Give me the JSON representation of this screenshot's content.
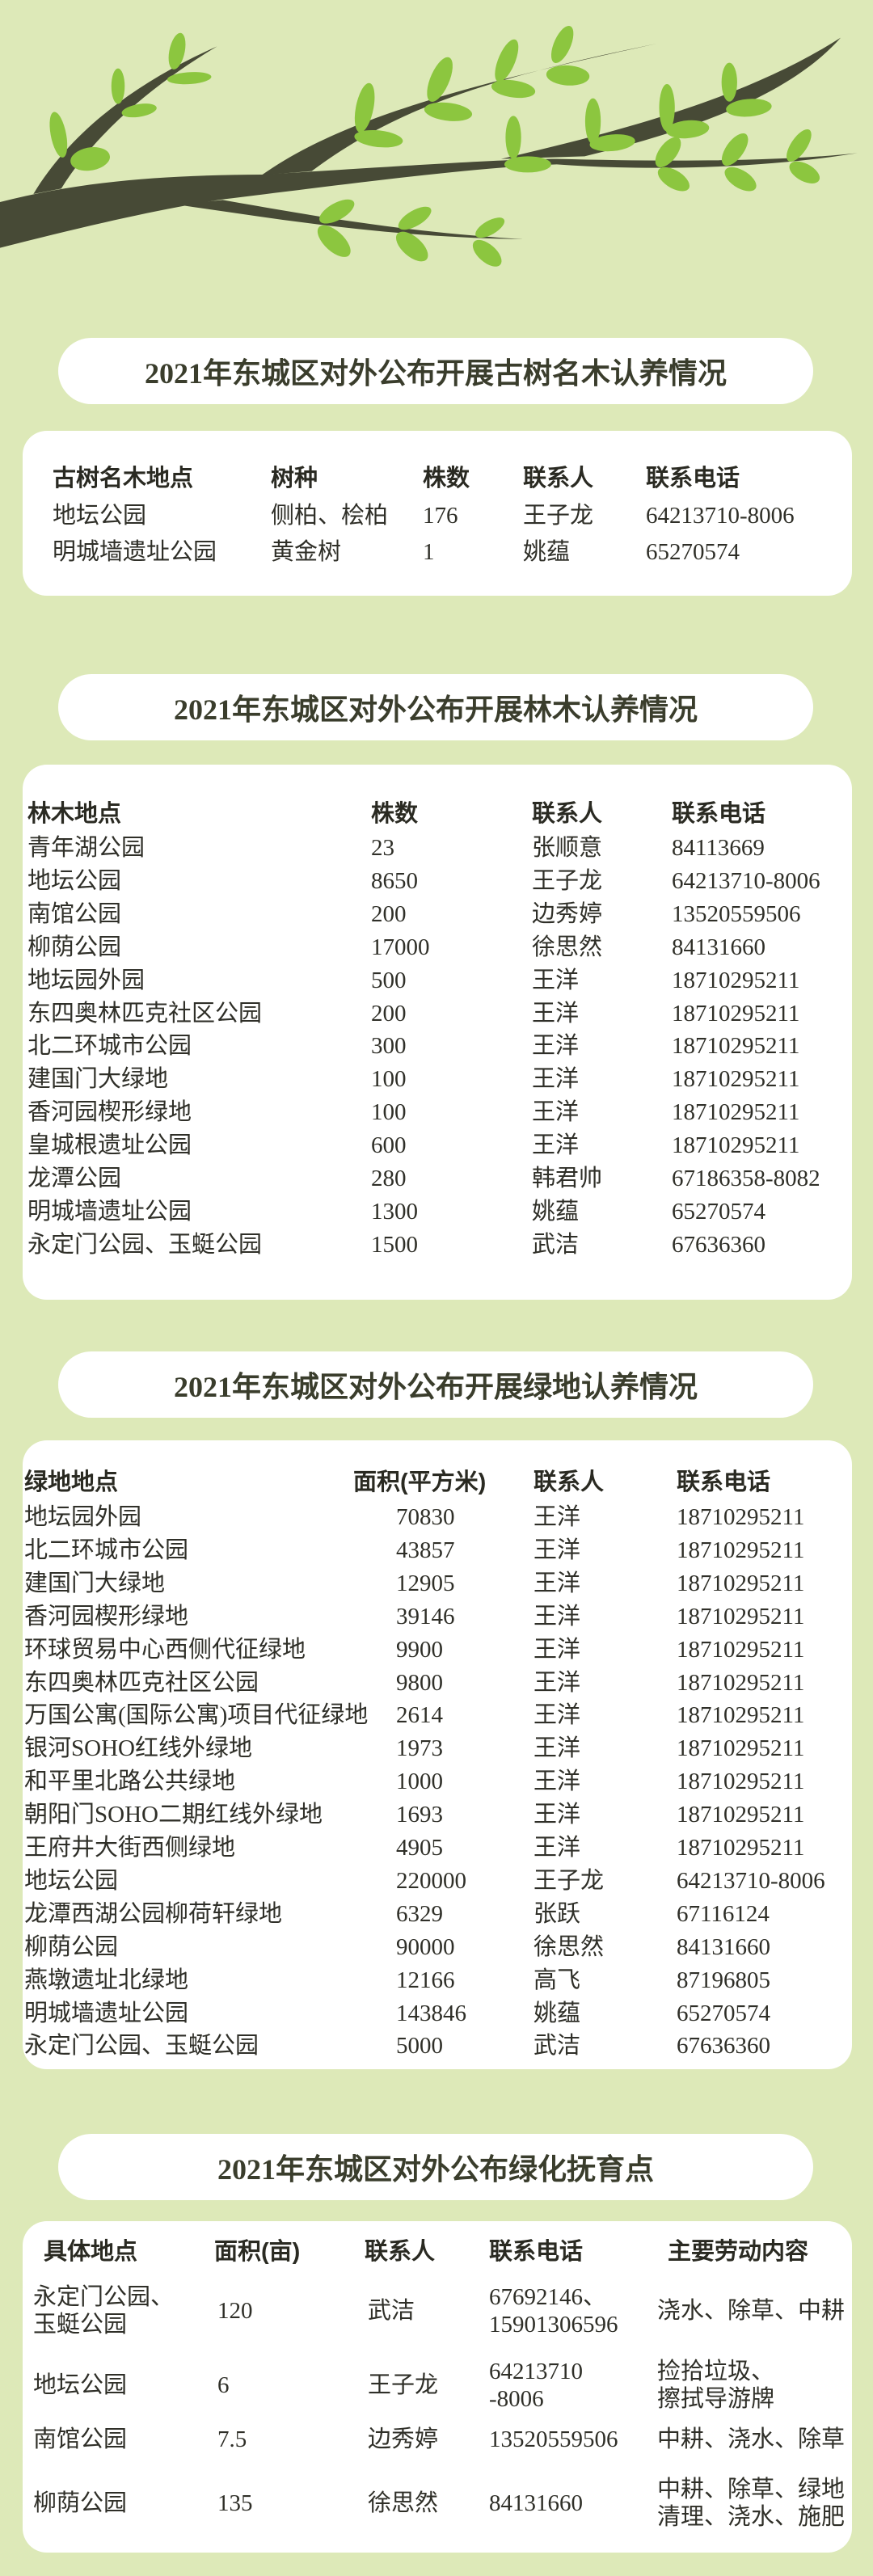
{
  "colors": {
    "background": "#dde9b8",
    "branch": "#474a36",
    "leaf": "#8cc63f",
    "panel": "#ffffff"
  },
  "sections": [
    {
      "title": "2021年东城区对外公布开展古树名木认养情况",
      "headers": [
        "古树名木地点",
        "树种",
        "株数",
        "联系人",
        "联系电话"
      ],
      "rows": [
        [
          "地坛公园",
          "侧柏、桧柏",
          "176",
          "王子龙",
          "64213710-8006"
        ],
        [
          "明城墙遗址公园",
          "黄金树",
          "1",
          "姚蕴",
          "65270574"
        ]
      ]
    },
    {
      "title": "2021年东城区对外公布开展林木认养情况",
      "headers": [
        "林木地点",
        "株数",
        "联系人",
        "联系电话"
      ],
      "rows": [
        [
          "青年湖公园",
          "23",
          "张顺意",
          "84113669"
        ],
        [
          "地坛公园",
          "8650",
          "王子龙",
          "64213710-8006"
        ],
        [
          "南馆公园",
          "200",
          "边秀婷",
          "13520559506"
        ],
        [
          "柳荫公园",
          "17000",
          "徐思然",
          "84131660"
        ],
        [
          "地坛园外园",
          "500",
          "王洋",
          "18710295211"
        ],
        [
          "东四奥林匹克社区公园",
          "200",
          "王洋",
          "18710295211"
        ],
        [
          "北二环城市公园",
          "300",
          "王洋",
          "18710295211"
        ],
        [
          "建国门大绿地",
          "100",
          "王洋",
          "18710295211"
        ],
        [
          "香河园楔形绿地",
          "100",
          "王洋",
          "18710295211"
        ],
        [
          "皇城根遗址公园",
          "600",
          "王洋",
          "18710295211"
        ],
        [
          "龙潭公园",
          "280",
          "韩君帅",
          "67186358-8082"
        ],
        [
          "明城墙遗址公园",
          "1300",
          "姚蕴",
          "65270574"
        ],
        [
          "永定门公园、玉蜓公园",
          "1500",
          "武洁",
          "67636360"
        ]
      ]
    },
    {
      "title": "2021年东城区对外公布开展绿地认养情况",
      "headers": [
        "绿地地点",
        "面积(平方米)",
        "联系人",
        "联系电话"
      ],
      "rows": [
        [
          "地坛园外园",
          "70830",
          "王洋",
          "18710295211"
        ],
        [
          "北二环城市公园",
          "43857",
          "王洋",
          "18710295211"
        ],
        [
          "建国门大绿地",
          "12905",
          "王洋",
          "18710295211"
        ],
        [
          "香河园楔形绿地",
          "39146",
          "王洋",
          "18710295211"
        ],
        [
          "环球贸易中心西侧代征绿地",
          "9900",
          "王洋",
          "18710295211"
        ],
        [
          "东四奥林匹克社区公园",
          "9800",
          "王洋",
          "18710295211"
        ],
        [
          "万国公寓(国际公寓)项目代征绿地",
          "2614",
          "王洋",
          "18710295211"
        ],
        [
          "银河SOHO红线外绿地",
          "1973",
          "王洋",
          "18710295211"
        ],
        [
          "和平里北路公共绿地",
          "1000",
          "王洋",
          "18710295211"
        ],
        [
          "朝阳门SOHO二期红线外绿地",
          "1693",
          "王洋",
          "18710295211"
        ],
        [
          "王府井大街西侧绿地",
          "4905",
          "王洋",
          "18710295211"
        ],
        [
          "地坛公园",
          "220000",
          "王子龙",
          "64213710-8006"
        ],
        [
          "龙潭西湖公园柳荷轩绿地",
          "6329",
          "张跃",
          "67116124"
        ],
        [
          "柳荫公园",
          "90000",
          "徐思然",
          "84131660"
        ],
        [
          "燕墩遗址北绿地",
          "12166",
          "高飞",
          "87196805"
        ],
        [
          "明城墙遗址公园",
          "143846",
          "姚蕴",
          "65270574"
        ],
        [
          "永定门公园、玉蜓公园",
          "5000",
          "武洁",
          "67636360"
        ]
      ]
    },
    {
      "title": "2021年东城区对外公布绿化抚育点",
      "headers": [
        "具体地点",
        "面积(亩)",
        "联系人",
        "联系电话",
        "主要劳动内容"
      ],
      "rows": [
        [
          "永定门公园、\n玉蜓公园",
          "120",
          "武洁",
          "67692146、\n15901306596",
          "浇水、除草、中耕"
        ],
        [
          "地坛公园",
          "6",
          "王子龙",
          "64213710\n-8006",
          "捡拾垃圾、\n擦拭导游牌"
        ],
        [
          "南馆公园",
          "7.5",
          "边秀婷",
          "13520559506",
          "中耕、浇水、除草"
        ],
        [
          "柳荫公园",
          "135",
          "徐思然",
          "84131660",
          "中耕、除草、绿地\n清理、浇水、施肥"
        ]
      ]
    }
  ]
}
